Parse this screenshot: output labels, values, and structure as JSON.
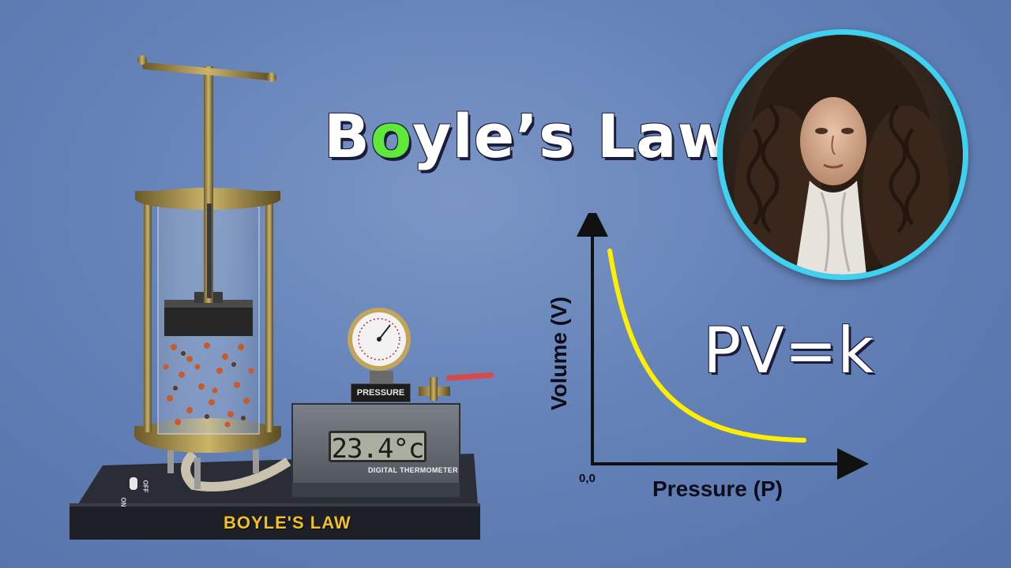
{
  "title": {
    "prefix": "B",
    "accent": "o",
    "suffix": "yle’s Law"
  },
  "formula": "PV=k",
  "graph": {
    "xlabel": "Pressure (P)",
    "ylabel": "Volume (V)",
    "origin": "0,0",
    "curve_color": "#ffee00"
  },
  "apparatus": {
    "gauge_plate": "PRESSURE",
    "thermometer_reading": "23.4°c",
    "thermometer_caption": "DIGITAL THERMOMETER",
    "base_label": "BOYLE'S LAW",
    "switch_labels": [
      "OFF",
      "ON"
    ]
  },
  "colors": {
    "accent": "#5ee83a",
    "portrait_ring": "#3fd1ef",
    "curve": "#ffee00",
    "background": "#6482b8"
  }
}
